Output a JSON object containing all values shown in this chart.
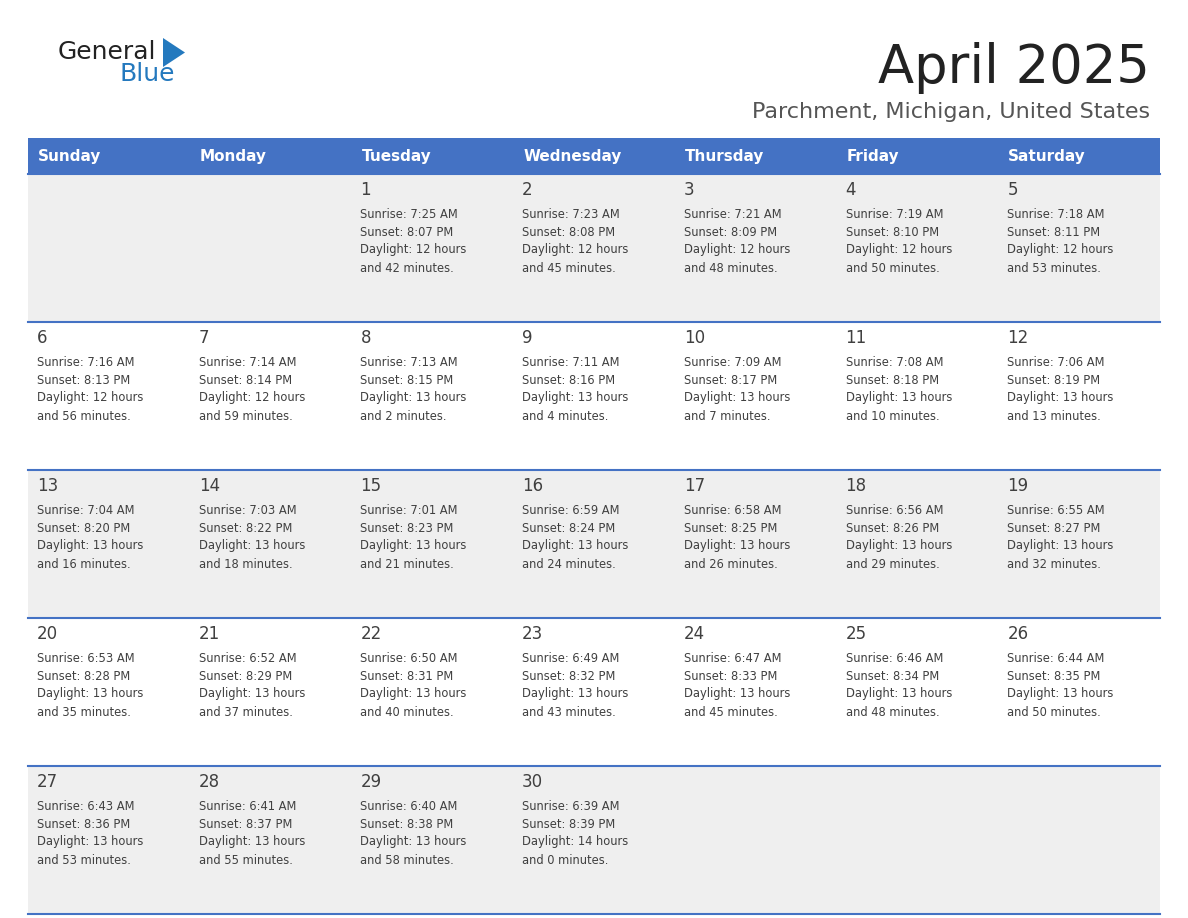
{
  "title": "April 2025",
  "subtitle": "Parchment, Michigan, United States",
  "header_bg": "#4472C4",
  "header_text_color": "#FFFFFF",
  "header_days": [
    "Sunday",
    "Monday",
    "Tuesday",
    "Wednesday",
    "Thursday",
    "Friday",
    "Saturday"
  ],
  "row_bg_odd": "#EFEFEF",
  "row_bg_even": "#FFFFFF",
  "separator_color": "#4472C4",
  "text_color": "#404040",
  "title_color": "#222222",
  "subtitle_color": "#555555",
  "logo_general_color": "#222222",
  "logo_blue_color": "#2479BE",
  "calendar": [
    [
      {
        "day": null,
        "sunrise": null,
        "sunset": null,
        "daylight": null
      },
      {
        "day": null,
        "sunrise": null,
        "sunset": null,
        "daylight": null
      },
      {
        "day": 1,
        "sunrise": "7:25 AM",
        "sunset": "8:07 PM",
        "daylight": "12 hours and 42 minutes."
      },
      {
        "day": 2,
        "sunrise": "7:23 AM",
        "sunset": "8:08 PM",
        "daylight": "12 hours and 45 minutes."
      },
      {
        "day": 3,
        "sunrise": "7:21 AM",
        "sunset": "8:09 PM",
        "daylight": "12 hours and 48 minutes."
      },
      {
        "day": 4,
        "sunrise": "7:19 AM",
        "sunset": "8:10 PM",
        "daylight": "12 hours and 50 minutes."
      },
      {
        "day": 5,
        "sunrise": "7:18 AM",
        "sunset": "8:11 PM",
        "daylight": "12 hours and 53 minutes."
      }
    ],
    [
      {
        "day": 6,
        "sunrise": "7:16 AM",
        "sunset": "8:13 PM",
        "daylight": "12 hours and 56 minutes."
      },
      {
        "day": 7,
        "sunrise": "7:14 AM",
        "sunset": "8:14 PM",
        "daylight": "12 hours and 59 minutes."
      },
      {
        "day": 8,
        "sunrise": "7:13 AM",
        "sunset": "8:15 PM",
        "daylight": "13 hours and 2 minutes."
      },
      {
        "day": 9,
        "sunrise": "7:11 AM",
        "sunset": "8:16 PM",
        "daylight": "13 hours and 4 minutes."
      },
      {
        "day": 10,
        "sunrise": "7:09 AM",
        "sunset": "8:17 PM",
        "daylight": "13 hours and 7 minutes."
      },
      {
        "day": 11,
        "sunrise": "7:08 AM",
        "sunset": "8:18 PM",
        "daylight": "13 hours and 10 minutes."
      },
      {
        "day": 12,
        "sunrise": "7:06 AM",
        "sunset": "8:19 PM",
        "daylight": "13 hours and 13 minutes."
      }
    ],
    [
      {
        "day": 13,
        "sunrise": "7:04 AM",
        "sunset": "8:20 PM",
        "daylight": "13 hours and 16 minutes."
      },
      {
        "day": 14,
        "sunrise": "7:03 AM",
        "sunset": "8:22 PM",
        "daylight": "13 hours and 18 minutes."
      },
      {
        "day": 15,
        "sunrise": "7:01 AM",
        "sunset": "8:23 PM",
        "daylight": "13 hours and 21 minutes."
      },
      {
        "day": 16,
        "sunrise": "6:59 AM",
        "sunset": "8:24 PM",
        "daylight": "13 hours and 24 minutes."
      },
      {
        "day": 17,
        "sunrise": "6:58 AM",
        "sunset": "8:25 PM",
        "daylight": "13 hours and 26 minutes."
      },
      {
        "day": 18,
        "sunrise": "6:56 AM",
        "sunset": "8:26 PM",
        "daylight": "13 hours and 29 minutes."
      },
      {
        "day": 19,
        "sunrise": "6:55 AM",
        "sunset": "8:27 PM",
        "daylight": "13 hours and 32 minutes."
      }
    ],
    [
      {
        "day": 20,
        "sunrise": "6:53 AM",
        "sunset": "8:28 PM",
        "daylight": "13 hours and 35 minutes."
      },
      {
        "day": 21,
        "sunrise": "6:52 AM",
        "sunset": "8:29 PM",
        "daylight": "13 hours and 37 minutes."
      },
      {
        "day": 22,
        "sunrise": "6:50 AM",
        "sunset": "8:31 PM",
        "daylight": "13 hours and 40 minutes."
      },
      {
        "day": 23,
        "sunrise": "6:49 AM",
        "sunset": "8:32 PM",
        "daylight": "13 hours and 43 minutes."
      },
      {
        "day": 24,
        "sunrise": "6:47 AM",
        "sunset": "8:33 PM",
        "daylight": "13 hours and 45 minutes."
      },
      {
        "day": 25,
        "sunrise": "6:46 AM",
        "sunset": "8:34 PM",
        "daylight": "13 hours and 48 minutes."
      },
      {
        "day": 26,
        "sunrise": "6:44 AM",
        "sunset": "8:35 PM",
        "daylight": "13 hours and 50 minutes."
      }
    ],
    [
      {
        "day": 27,
        "sunrise": "6:43 AM",
        "sunset": "8:36 PM",
        "daylight": "13 hours and 53 minutes."
      },
      {
        "day": 28,
        "sunrise": "6:41 AM",
        "sunset": "8:37 PM",
        "daylight": "13 hours and 55 minutes."
      },
      {
        "day": 29,
        "sunrise": "6:40 AM",
        "sunset": "8:38 PM",
        "daylight": "13 hours and 58 minutes."
      },
      {
        "day": 30,
        "sunrise": "6:39 AM",
        "sunset": "8:39 PM",
        "daylight": "14 hours and 0 minutes."
      },
      {
        "day": null,
        "sunrise": null,
        "sunset": null,
        "daylight": null
      },
      {
        "day": null,
        "sunrise": null,
        "sunset": null,
        "daylight": null
      },
      {
        "day": null,
        "sunrise": null,
        "sunset": null,
        "daylight": null
      }
    ]
  ],
  "figsize": [
    11.88,
    9.18
  ],
  "dpi": 100
}
